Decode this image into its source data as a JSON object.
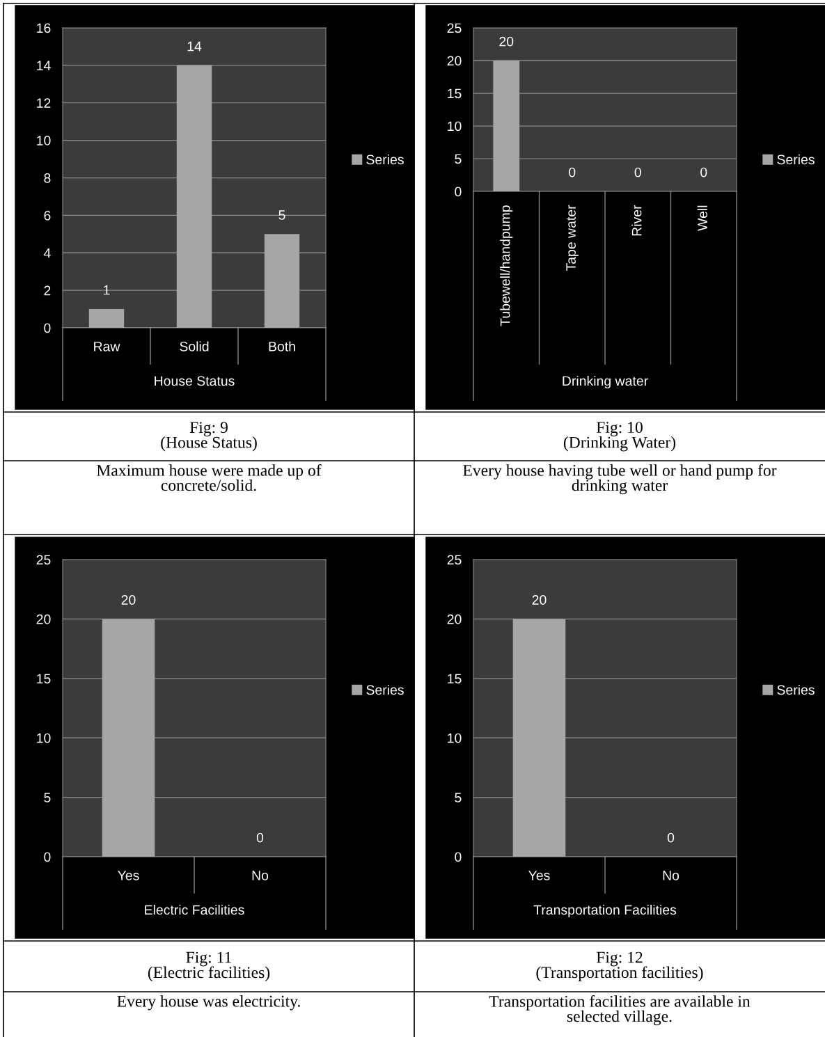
{
  "chart_data": [
    {
      "type": "bar",
      "xlabel": "House Status",
      "categories": [
        "Raw",
        "Solid",
        "Both"
      ],
      "series": [
        {
          "name": "Series",
          "color": "#a6a6a6",
          "values": [
            1,
            14,
            5
          ]
        }
      ],
      "ylim": [
        0,
        16
      ],
      "yticks": [
        0,
        2,
        4,
        6,
        8,
        10,
        12,
        14,
        16
      ],
      "grid": "y",
      "legend": "right",
      "data_labels": true,
      "annotations": [
        "Fig: 9\n(House Status)",
        "Maximum house were made up of\nconcrete/solid."
      ]
    },
    {
      "type": "bar",
      "xlabel": "Drinking water",
      "categories": [
        "Tubewell/handpump",
        "Tape water",
        "River",
        "Well"
      ],
      "series": [
        {
          "name": "Series",
          "color": "#a6a6a6",
          "values": [
            20,
            0,
            0,
            0
          ]
        }
      ],
      "ylim": [
        0,
        25
      ],
      "yticks": [
        0,
        5,
        10,
        15,
        20,
        25
      ],
      "grid": "y",
      "legend": "right",
      "data_labels": true,
      "annotations": [
        "Fig: 10\n(Drinking Water)",
        "Every house having tube well or hand pump for\ndrinking water"
      ]
    },
    {
      "type": "bar",
      "xlabel": "Electric Facilities",
      "categories": [
        "Yes",
        "No"
      ],
      "series": [
        {
          "name": "Series",
          "color": "#a6a6a6",
          "values": [
            20,
            0
          ]
        }
      ],
      "ylim": [
        0,
        25
      ],
      "yticks": [
        0,
        5,
        10,
        15,
        20,
        25
      ],
      "grid": "y",
      "legend": "right",
      "data_labels": true,
      "annotations": [
        "Fig: 11\n(Electric facilities)",
        "Every house was electricity."
      ]
    },
    {
      "type": "bar",
      "xlabel": "Transportation Facilities",
      "categories": [
        "Yes",
        "No"
      ],
      "series": [
        {
          "name": "Series",
          "color": "#a6a6a6",
          "values": [
            20,
            0
          ]
        }
      ],
      "ylim": [
        0,
        25
      ],
      "yticks": [
        0,
        5,
        10,
        15,
        20,
        25
      ],
      "grid": "y",
      "legend": "right",
      "data_labels": true,
      "annotations": [
        "Fig: 12\n(Transportation facilities)",
        "Transportation facilities are available in\nselected village."
      ]
    }
  ]
}
